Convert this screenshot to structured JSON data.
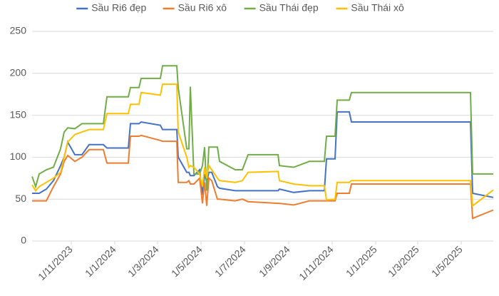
{
  "chart_data": {
    "type": "line",
    "x": [
      "2023-09-07",
      "2023-09-12",
      "2023-09-17",
      "2023-09-27",
      "2023-10-07",
      "2023-10-17",
      "2023-10-22",
      "2023-10-27",
      "2023-11-06",
      "2023-11-16",
      "2023-11-26",
      "2023-12-16",
      "2023-12-21",
      "2024-01-20",
      "2024-01-23",
      "2024-02-04",
      "2024-02-07",
      "2024-03-05",
      "2024-03-08",
      "2024-03-28",
      "2024-03-30",
      "2024-04-11",
      "2024-04-14",
      "2024-04-16",
      "2024-04-21",
      "2024-04-29",
      "2024-05-03",
      "2024-05-06",
      "2024-05-09",
      "2024-05-12",
      "2024-05-16",
      "2024-05-24",
      "2024-05-27",
      "2024-06-18",
      "2024-06-28",
      "2024-07-06",
      "2024-08-17",
      "2024-08-19",
      "2024-09-08",
      "2024-09-30",
      "2024-10-21",
      "2024-10-24",
      "2024-11-05",
      "2024-11-08",
      "2024-11-25",
      "2024-11-28",
      "2025-05-14",
      "2025-05-17",
      "2025-06-15"
    ],
    "series": [
      {
        "name": "Sầu Ri6 đẹp",
        "color": "#4472c4",
        "values": [
          57,
          57,
          57,
          62,
          72,
          90,
          100,
          118,
          103,
          103,
          115,
          115,
          111,
          111,
          140,
          140,
          142,
          138,
          133,
          133,
          100,
          82,
          82,
          78,
          78,
          85,
          55,
          80,
          70,
          82,
          82,
          65,
          63,
          60,
          60,
          60,
          60,
          62,
          58,
          60,
          60,
          98,
          98,
          154,
          154,
          142,
          142,
          57,
          52
        ]
      },
      {
        "name": "Sầu Ri6 xô",
        "color": "#ed7d31",
        "values": [
          48,
          48,
          48,
          48,
          65,
          80,
          95,
          102,
          95,
          100,
          109,
          109,
          93,
          93,
          125,
          125,
          126,
          120,
          119,
          119,
          70,
          70,
          72,
          68,
          68,
          75,
          45,
          70,
          42,
          75,
          72,
          50,
          50,
          48,
          50,
          47,
          45,
          45,
          43,
          48,
          48,
          48,
          48,
          57,
          57,
          68,
          68,
          27,
          37
        ]
      },
      {
        "name": "Sầu Thái đẹp",
        "color": "#70ad47",
        "values": [
          77,
          65,
          80,
          85,
          88,
          110,
          130,
          135,
          134,
          140,
          140,
          140,
          172,
          172,
          183,
          183,
          194,
          194,
          209,
          209,
          183,
          110,
          110,
          184,
          80,
          80,
          90,
          112,
          60,
          112,
          112,
          112,
          95,
          85,
          85,
          103,
          103,
          90,
          88,
          95,
          95,
          125,
          125,
          168,
          168,
          177,
          177,
          80,
          80
        ]
      },
      {
        "name": "Sầu Thái xô",
        "color": "#ffc000",
        "values": [
          67,
          60,
          65,
          70,
          75,
          82,
          100,
          118,
          127,
          130,
          133,
          133,
          152,
          152,
          163,
          163,
          177,
          174,
          187,
          187,
          130,
          100,
          88,
          90,
          88,
          80,
          65,
          88,
          75,
          90,
          85,
          75,
          72,
          70,
          72,
          82,
          83,
          72,
          68,
          66,
          66,
          49,
          50,
          70,
          70,
          72,
          72,
          42,
          61
        ]
      }
    ],
    "xlim": [
      "2023-09-07",
      "2025-06-15"
    ],
    "xticks": [
      {
        "value": "2023-11-01",
        "label": "1/11/2023"
      },
      {
        "value": "2024-01-01",
        "label": "1/1/2024"
      },
      {
        "value": "2024-03-01",
        "label": "1/3/2024"
      },
      {
        "value": "2024-05-01",
        "label": "1/5/2024"
      },
      {
        "value": "2024-07-01",
        "label": "1/7/2024"
      },
      {
        "value": "2024-09-01",
        "label": "1/9/2024"
      },
      {
        "value": "2024-11-01",
        "label": "1/11/2024"
      },
      {
        "value": "2025-01-01",
        "label": "1/1/2025"
      },
      {
        "value": "2025-03-01",
        "label": "1/3/2025"
      },
      {
        "value": "2025-05-01",
        "label": "1/5/2025"
      }
    ],
    "ylim": [
      0,
      250
    ],
    "yticks": [
      0,
      50,
      100,
      150,
      200,
      250
    ],
    "grid": true,
    "legend": "top"
  }
}
